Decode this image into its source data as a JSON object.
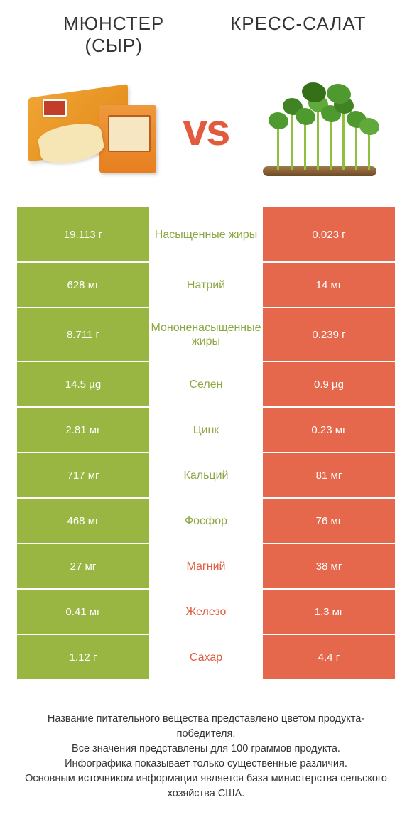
{
  "colors": {
    "left": "#99b642",
    "right": "#e6684c",
    "nutrient_text": "#8da742",
    "nutrient_winner_right": "#e25b3f",
    "vs": "#e25b3f"
  },
  "header": {
    "left_title": "Мюнстер (сыр)",
    "right_title": "Кресс-салат",
    "vs_label": "vs"
  },
  "footer": {
    "line1": "Название питательного вещества представлено цветом продукта-победителя.",
    "line2": "Все значения представлены для 100 граммов продукта.",
    "line3": "Инфографика показывает только существенные различия.",
    "line4": "Основным источником информации является база министерства сельского хозяйства США."
  },
  "rows": [
    {
      "nutrient": "Насыщенные жиры",
      "left": "19.113 г",
      "right": "0.023 г",
      "winner": "left",
      "tall": true
    },
    {
      "nutrient": "Натрий",
      "left": "628 мг",
      "right": "14 мг",
      "winner": "left",
      "tall": false
    },
    {
      "nutrient": "Мононенасыщенные жиры",
      "left": "8.711 г",
      "right": "0.239 г",
      "winner": "left",
      "tall": true
    },
    {
      "nutrient": "Селен",
      "left": "14.5 µg",
      "right": "0.9 µg",
      "winner": "left",
      "tall": false
    },
    {
      "nutrient": "Цинк",
      "left": "2.81 мг",
      "right": "0.23 мг",
      "winner": "left",
      "tall": false
    },
    {
      "nutrient": "Кальций",
      "left": "717 мг",
      "right": "81 мг",
      "winner": "left",
      "tall": false
    },
    {
      "nutrient": "Фосфор",
      "left": "468 мг",
      "right": "76 мг",
      "winner": "left",
      "tall": false
    },
    {
      "nutrient": "Магний",
      "left": "27 мг",
      "right": "38 мг",
      "winner": "right",
      "tall": false
    },
    {
      "nutrient": "Железо",
      "left": "0.41 мг",
      "right": "1.3 мг",
      "winner": "right",
      "tall": false
    },
    {
      "nutrient": "Сахар",
      "left": "1.12 г",
      "right": "4.4 г",
      "winner": "right",
      "tall": false
    }
  ]
}
